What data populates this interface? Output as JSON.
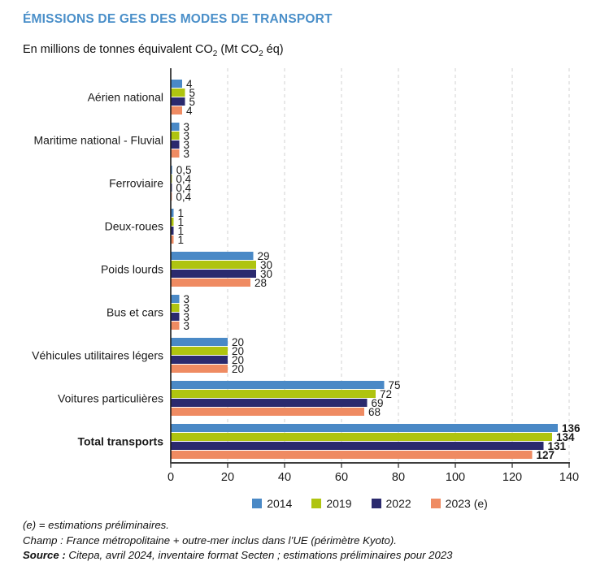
{
  "header": {
    "title": "ÉMISSIONS DE GES DES MODES DE TRANSPORT",
    "title_color": "#4a8fc9",
    "subtitle": {
      "pre": "En millions de tonnes équivalent CO",
      "sub1": "2",
      "mid": " (Mt CO",
      "sub2": "2",
      "post": " éq)"
    }
  },
  "chart_data": {
    "type": "bar",
    "orientation": "horizontal",
    "title": "ÉMISSIONS DE GES DES MODES DE TRANSPORT",
    "subtitle": "En millions de tonnes équivalent CO2 (Mt CO2 éq)",
    "xlabel": "",
    "ylabel": "",
    "xlim": [
      0,
      140
    ],
    "x_ticks": [
      0,
      20,
      40,
      60,
      80,
      100,
      120,
      140
    ],
    "grid": "vertical-dashed",
    "legend_position": "bottom",
    "categories": [
      "Aérien national",
      "Maritime national - Fluvial",
      "Ferroviaire",
      "Deux-roues",
      "Poids lourds",
      "Bus et cars",
      "Véhicules utilitaires légers",
      "Voitures particulières",
      "Total transports"
    ],
    "bold_category": "Total transports",
    "series": [
      {
        "name": "2014",
        "color": "#4a89c6",
        "values": [
          4,
          3,
          0.5,
          1,
          29,
          3,
          20,
          75,
          136
        ],
        "labels": [
          "4",
          "3",
          "0,5",
          "1",
          "29",
          "3",
          "20",
          "75",
          "136"
        ]
      },
      {
        "name": "2019",
        "color": "#afc410",
        "values": [
          5,
          3,
          0.4,
          1,
          30,
          3,
          20,
          72,
          134
        ],
        "labels": [
          "5",
          "3",
          "0,4",
          "1",
          "30",
          "3",
          "20",
          "72",
          "134"
        ]
      },
      {
        "name": "2022",
        "color": "#2b2a6e",
        "values": [
          5,
          3,
          0.4,
          1,
          30,
          3,
          20,
          69,
          131
        ],
        "labels": [
          "5",
          "3",
          "0,4",
          "1",
          "30",
          "3",
          "20",
          "69",
          "131"
        ]
      },
      {
        "name": "2023 (e)",
        "color": "#ef8b62",
        "values": [
          4,
          3,
          0.4,
          1,
          28,
          3,
          20,
          68,
          127
        ],
        "labels": [
          "4",
          "3",
          "0,4",
          "1",
          "28",
          "3",
          "20",
          "68",
          "127"
        ]
      }
    ],
    "colors": {
      "grid": "#d9d9d9",
      "axis": "#3d3d3d",
      "text": "#1a1a1a"
    }
  },
  "footnotes": {
    "line1": "(e) = estimations préliminaires.",
    "line2": "Champ : France métropolitaine + outre-mer inclus dans l’UE (périmètre Kyoto).",
    "line3_bold": "Source :",
    "line3_rest": " Citepa, avril 2024, inventaire format Secten ; estimations préliminaires pour 2023"
  }
}
